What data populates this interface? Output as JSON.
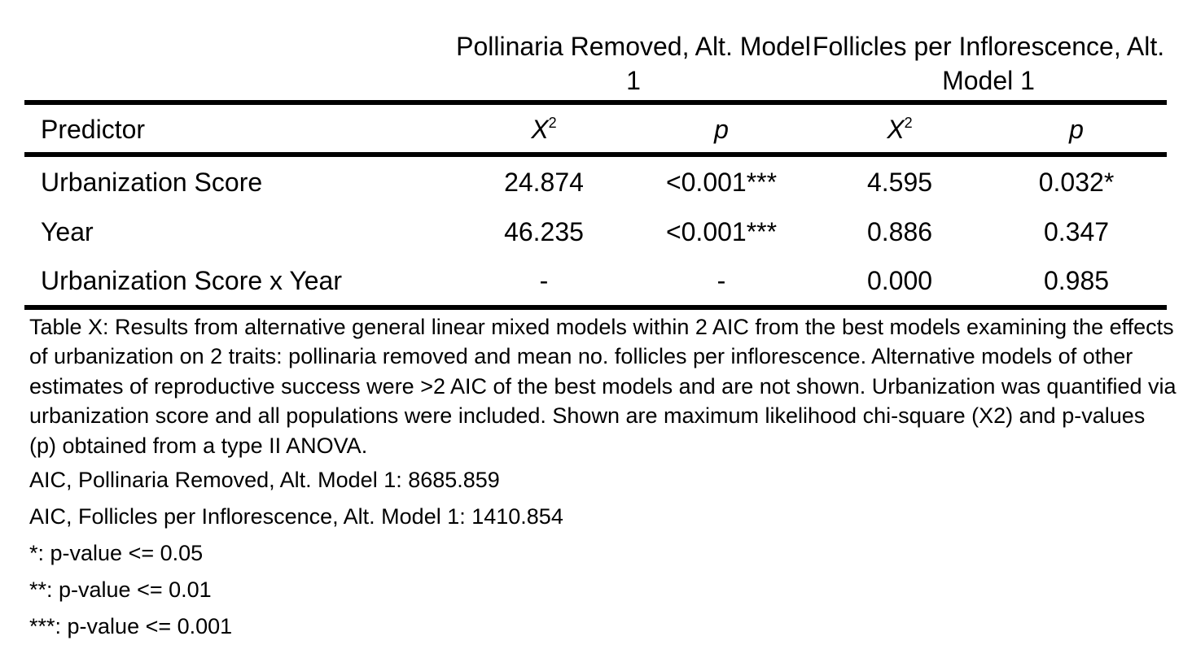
{
  "table": {
    "groups": [
      "Pollinaria Removed, Alt. Model 1",
      "Follicles per Inflorescence, Alt. Model 1"
    ],
    "columns": {
      "predictor": "Predictor",
      "chi_base": "X",
      "chi_sup": "2",
      "p": "p"
    },
    "rows": [
      {
        "predictor": "Urbanization Score",
        "pr_chi2": "24.874",
        "pr_p": "<0.001***",
        "fi_chi2": "4.595",
        "fi_p": "0.032*"
      },
      {
        "predictor": "Year",
        "pr_chi2": "46.235",
        "pr_p": "<0.001***",
        "fi_chi2": "0.886",
        "fi_p": "0.347"
      },
      {
        "predictor": "Urbanization Score x Year",
        "pr_chi2": "-",
        "pr_p": "-",
        "fi_chi2": "0.000",
        "fi_p": "0.985"
      }
    ]
  },
  "caption": "Table X: Results from alternative general linear mixed models within 2 AIC from the best models examining the effects of urbanization on 2 traits: pollinaria removed and mean no. follicles per inflorescence. Alternative models of other estimates of reproductive success were >2 AIC of the best models and are not shown. Urbanization was quantified via urbanization score and all populations were included. Shown are maximum likelihood chi-square (X2) and p-values (p) obtained from a type II ANOVA.",
  "notes": [
    "AIC, Pollinaria Removed, Alt. Model 1: 8685.859",
    "AIC, Follicles per Inflorescence, Alt. Model 1: 1410.854",
    "*: p-value <= 0.05",
    "**: p-value <= 0.01",
    "***: p-value <= 0.001"
  ]
}
